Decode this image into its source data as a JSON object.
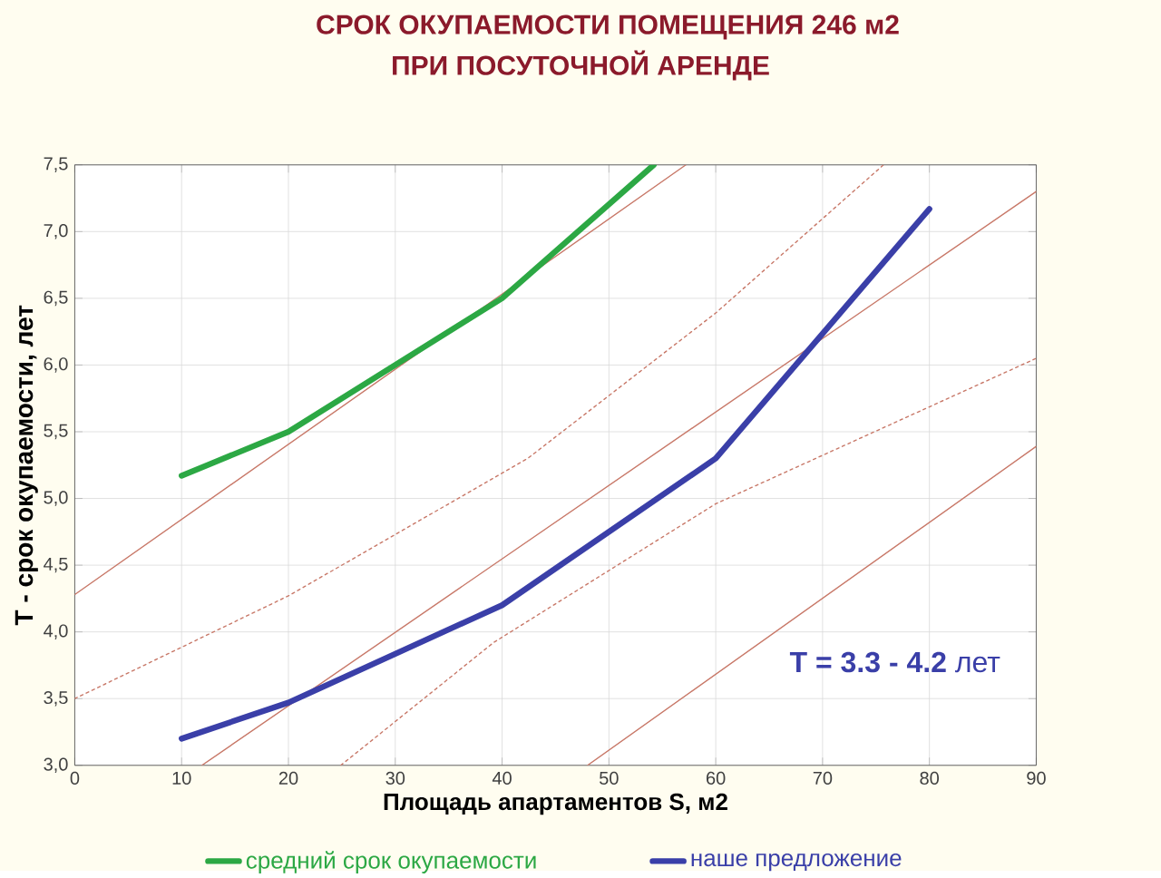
{
  "chart_data": {
    "type": "line",
    "title": "СРОК ОКУПАЕМОСТИ ПОМЕЩЕНИЯ    246 м2",
    "subtitle": "ПРИ ПОСУТОЧНОЙ АРЕНДЕ",
    "xlabel": "Площадь апартаментов S, м2",
    "ylabel": "T - срок окупаемости, лет",
    "annotations": [
      "**T = 3.3 - 4.2** лет"
    ],
    "xlim": [
      0,
      90
    ],
    "xticks": [
      0,
      10,
      20,
      30,
      40,
      50,
      60,
      70,
      80,
      90
    ],
    "ylim": [
      3.0,
      7.5
    ],
    "yticks": [
      {
        "value": 3.0,
        "label": "3,0"
      },
      {
        "value": 3.5,
        "label": "3,5"
      },
      {
        "value": 4.0,
        "label": "4,0"
      },
      {
        "value": 4.5,
        "label": "4,5"
      },
      {
        "value": 5.0,
        "label": "5,0"
      },
      {
        "value": 5.5,
        "label": "5,5"
      },
      {
        "value": 6.0,
        "label": "6,0"
      },
      {
        "value": 6.5,
        "label": "6,5"
      },
      {
        "value": 7.0,
        "label": "7,0"
      },
      {
        "value": 7.5,
        "label": "7,5"
      }
    ],
    "grid": true,
    "legend": "bottom",
    "series": [
      {
        "color": "#c87868",
        "line_style": "solid",
        "x": [
          0,
          57.2
        ],
        "values": [
          4.28,
          7.5
        ]
      },
      {
        "color": "#c87868",
        "line_style": "solid",
        "x": [
          11.9,
          90
        ],
        "values": [
          3.0,
          7.3
        ]
      },
      {
        "color": "#c87868",
        "line_style": "solid",
        "x": [
          48.0,
          90
        ],
        "values": [
          3.0,
          5.39
        ]
      },
      {
        "color": "#c87868",
        "line_style": "dotted",
        "x": [
          0,
          20,
          42.4,
          60,
          75.7
        ],
        "values": [
          3.5,
          4.27,
          5.3,
          6.39,
          7.5
        ]
      },
      {
        "color": "#c87868",
        "line_style": "dotted",
        "x": [
          24.9,
          39.2,
          60,
          90
        ],
        "values": [
          3.0,
          3.92,
          4.96,
          6.05
        ]
      },
      {
        "name": "средний срок окупаемости",
        "color": "#2ca844",
        "line_style": "solid",
        "x": [
          10,
          20,
          40,
          54.2
        ],
        "values": [
          5.17,
          5.5,
          6.5,
          7.5
        ]
      },
      {
        "name": "наше предложение",
        "color": "#3a3fa8",
        "line_style": "solid",
        "x": [
          10,
          20,
          40,
          60,
          80
        ],
        "values": [
          3.2,
          3.47,
          4.2,
          5.3,
          7.17
        ]
      }
    ]
  }
}
